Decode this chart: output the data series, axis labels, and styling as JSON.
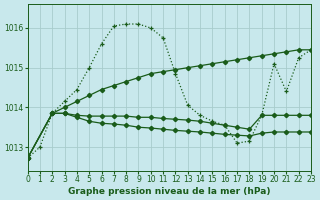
{
  "background_color": "#c8e8ec",
  "grid_color": "#a8cccc",
  "line_color": "#1a5c1a",
  "xlabel": "Graphe pression niveau de la mer (hPa)",
  "ylim": [
    1012.4,
    1016.6
  ],
  "xlim": [
    0,
    23
  ],
  "yticks": [
    1013,
    1014,
    1015,
    1016
  ],
  "xticks": [
    0,
    1,
    2,
    3,
    4,
    5,
    6,
    7,
    8,
    9,
    10,
    11,
    12,
    13,
    14,
    15,
    16,
    17,
    18,
    19,
    20,
    21,
    22,
    23
  ],
  "line1_x": [
    0,
    1,
    2,
    3,
    4,
    5,
    6,
    7,
    8,
    9,
    10,
    11,
    12,
    13,
    14,
    15,
    16,
    17,
    18,
    19,
    20,
    21,
    22,
    23
  ],
  "line1_y": [
    1012.72,
    1013.0,
    1013.85,
    1014.15,
    1014.45,
    1015.0,
    1015.6,
    1016.05,
    1016.1,
    1016.1,
    1016.0,
    1015.75,
    1014.85,
    1014.05,
    1013.8,
    1013.65,
    1013.55,
    1013.1,
    1013.15,
    1013.8,
    1015.1,
    1014.4,
    1015.25,
    1015.45
  ],
  "line1_style": "dotted",
  "line2_x": [
    0,
    2,
    3,
    4,
    5,
    6,
    7,
    8,
    9,
    10,
    11,
    12,
    13,
    14,
    15,
    16,
    17,
    18,
    19,
    20,
    21,
    22,
    23
  ],
  "line2_y": [
    1012.72,
    1013.85,
    1014.0,
    1014.15,
    1014.3,
    1014.45,
    1014.55,
    1014.65,
    1014.75,
    1014.85,
    1014.9,
    1014.95,
    1015.0,
    1015.05,
    1015.1,
    1015.15,
    1015.2,
    1015.25,
    1015.3,
    1015.35,
    1015.4,
    1015.45,
    1015.45
  ],
  "line3_x": [
    0,
    2,
    3,
    4,
    5,
    6,
    7,
    8,
    9,
    10,
    11,
    12,
    13,
    14,
    15,
    16,
    17,
    18,
    19,
    20,
    21,
    22,
    23
  ],
  "line3_y": [
    1012.72,
    1013.85,
    1013.85,
    1013.8,
    1013.78,
    1013.78,
    1013.78,
    1013.78,
    1013.75,
    1013.75,
    1013.72,
    1013.7,
    1013.68,
    1013.65,
    1013.6,
    1013.55,
    1013.5,
    1013.45,
    1013.8,
    1013.8,
    1013.8,
    1013.8,
    1013.8
  ],
  "line4_x": [
    0,
    2,
    3,
    4,
    5,
    6,
    7,
    8,
    9,
    10,
    11,
    12,
    13,
    14,
    15,
    16,
    17,
    18,
    19,
    20,
    21,
    22,
    23
  ],
  "line4_y": [
    1012.72,
    1013.85,
    1013.85,
    1013.75,
    1013.65,
    1013.6,
    1013.58,
    1013.55,
    1013.5,
    1013.48,
    1013.45,
    1013.42,
    1013.4,
    1013.38,
    1013.35,
    1013.32,
    1013.3,
    1013.28,
    1013.35,
    1013.38,
    1013.38,
    1013.38,
    1013.38
  ]
}
